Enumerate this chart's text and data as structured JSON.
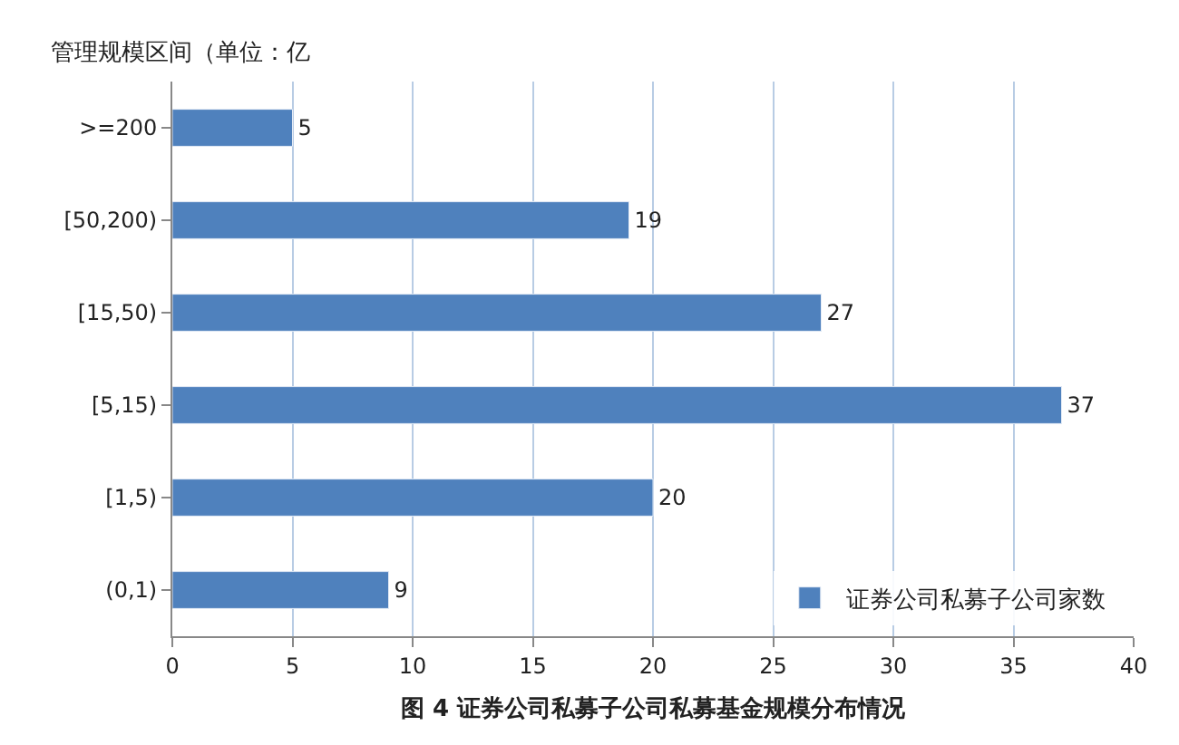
{
  "chart_data": {
    "type": "bar",
    "orientation": "horizontal",
    "title": "图 4 证券公司私募子公司私募基金规模分布情况",
    "ylabel": "管理规模区间（单位：亿",
    "categories": [
      ">=200",
      "[50,200)",
      "[15,50)",
      "[5,15)",
      "[1,5)",
      "(0,1)"
    ],
    "series": [
      {
        "name": "证券公司私募子公司家数",
        "color": "#4f81bd",
        "values": [
          5,
          19,
          27,
          37,
          20,
          9
        ]
      }
    ],
    "data_labels": true,
    "xlim": [
      0,
      40
    ],
    "xticks": [
      0,
      5,
      10,
      15,
      20,
      25,
      30,
      35,
      40
    ],
    "grid": "x",
    "legend": "bottom right"
  }
}
